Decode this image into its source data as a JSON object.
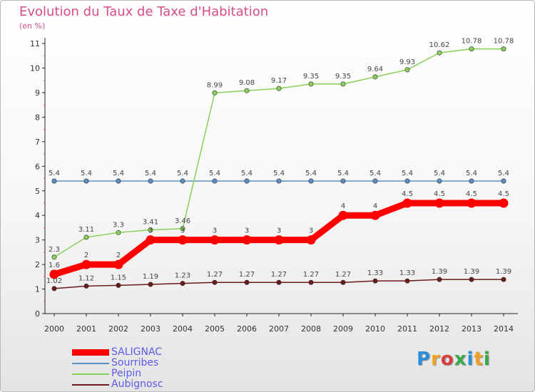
{
  "title": "Evolution du Taux de Taxe d'Habitation",
  "unit": "(en %)",
  "brand": {
    "text": "Proxiti",
    "letter_colors": [
      "#2a8fd8",
      "#f0a020",
      "#d83c3c",
      "#3aa84a",
      "#2a8fd8",
      "#f0a020",
      "#3aa84a"
    ]
  },
  "chart_data": {
    "type": "line",
    "x": [
      2000,
      2001,
      2002,
      2003,
      2004,
      2005,
      2006,
      2007,
      2008,
      2009,
      2010,
      2011,
      2012,
      2013,
      2014
    ],
    "ylim": [
      0,
      11
    ],
    "yticks": [
      0,
      1,
      2,
      3,
      4,
      5,
      6,
      7,
      8,
      9,
      10,
      11
    ],
    "grid": false,
    "legend_position": "bottom-left",
    "series": [
      {
        "name": "Sourribes",
        "color": "#5b8fc4",
        "values": [
          5.4,
          5.4,
          5.4,
          5.4,
          5.4,
          5.4,
          5.4,
          5.4,
          5.4,
          5.4,
          5.4,
          5.4,
          5.4,
          5.4,
          5.4
        ],
        "labels": [
          "5.4",
          "5.4",
          "5.4",
          "5.4",
          "5.4",
          "5.4",
          "5.4",
          "5.4",
          "5.4",
          "5.4",
          "5.4",
          "5.4",
          "5.4",
          "5.4",
          "5.4"
        ]
      },
      {
        "name": "Peipin",
        "color": "#88d058",
        "values": [
          2.3,
          3.11,
          3.3,
          3.41,
          3.46,
          8.99,
          9.08,
          9.17,
          9.35,
          9.35,
          9.64,
          9.93,
          10.62,
          10.78,
          10.78
        ],
        "labels": [
          "2.3",
          "3.11",
          "3.3",
          "3.41",
          "3.46",
          "8.99",
          "9.08",
          "9.17",
          "9.35",
          "9.35",
          "9.64",
          "9.93",
          "10.62",
          "10.78",
          "10.78"
        ]
      },
      {
        "name": "Aubignosc",
        "color": "#6b1a1a",
        "values": [
          1.02,
          1.12,
          1.15,
          1.19,
          1.23,
          1.27,
          1.27,
          1.27,
          1.27,
          1.27,
          1.33,
          1.33,
          1.39,
          1.39,
          1.39
        ],
        "labels": [
          "1.02",
          "1.12",
          "1.15",
          "1.19",
          "1.23",
          "1.27",
          "1.27",
          "1.27",
          "1.27",
          "1.27",
          "1.33",
          "1.33",
          "1.39",
          "1.39",
          "1.39"
        ]
      },
      {
        "name": "SALIGNAC",
        "color": "#ff0000",
        "values": [
          1.6,
          2,
          2,
          3,
          3,
          3,
          3,
          3,
          3,
          4,
          4,
          4.5,
          4.5,
          4.5,
          4.5
        ],
        "labels": [
          "1.6",
          "2",
          "2",
          "3",
          "3",
          "3",
          "3",
          "3",
          "3",
          "4",
          "4",
          "4.5",
          "4.5",
          "4.5",
          "4.5"
        ]
      }
    ],
    "legend": [
      {
        "name": "SALIGNAC",
        "color": "#ff0000",
        "thick": true
      },
      {
        "name": "Sourribes",
        "color": "#5b8fc4",
        "thick": false
      },
      {
        "name": "Peipin",
        "color": "#88d058",
        "thick": false
      },
      {
        "name": "Aubignosc",
        "color": "#6b1a1a",
        "thick": false
      }
    ]
  }
}
